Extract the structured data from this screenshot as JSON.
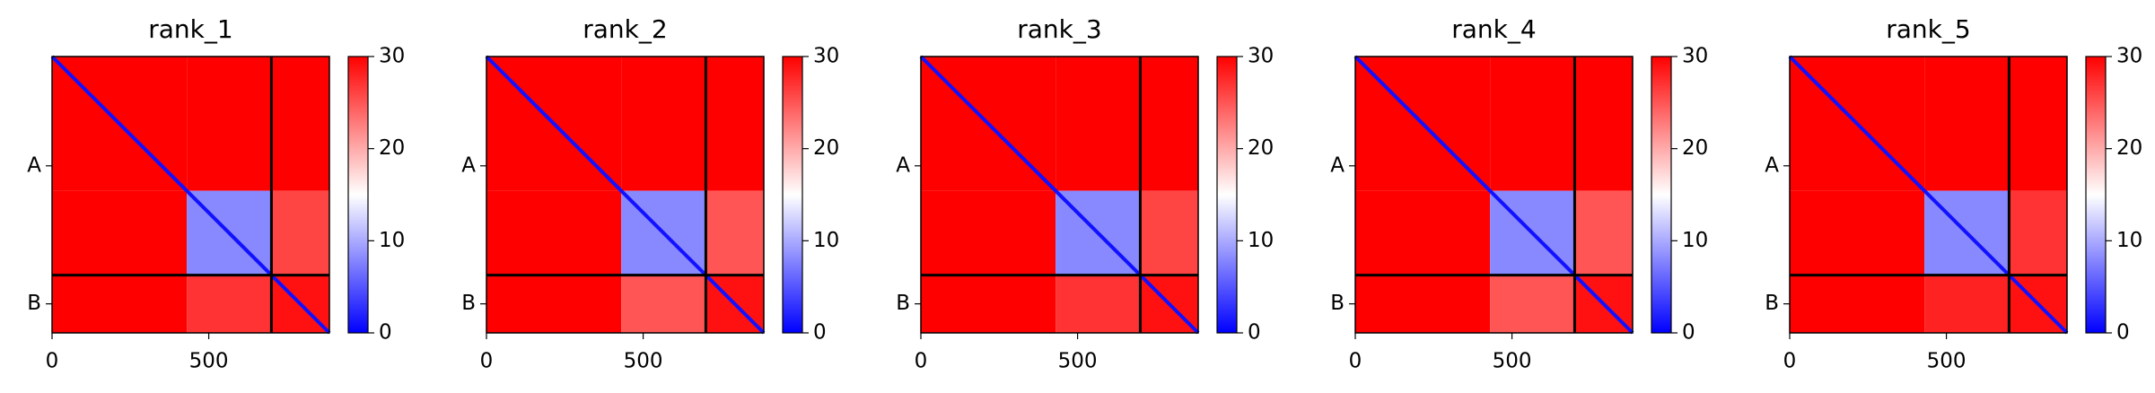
{
  "chart_data": [
    {
      "type": "heatmap",
      "title": "rank_1",
      "colormap": "bwr",
      "xlim": [
        0,
        885
      ],
      "xticks": [
        0,
        500
      ],
      "ylim": [
        0,
        885
      ],
      "yticks": [
        {
          "value": 350,
          "label": "A"
        },
        {
          "value": 792,
          "label": "B"
        }
      ],
      "chain_breaks": [
        700
      ],
      "block_edges": [
        0,
        430,
        700,
        885
      ],
      "block_values": [
        [
          30,
          30,
          30
        ],
        [
          30,
          8,
          26
        ],
        [
          30,
          27,
          29
        ]
      ],
      "diagonal_value": 1,
      "clim": [
        0,
        30
      ],
      "cticks": [
        0,
        10,
        20,
        30
      ]
    },
    {
      "type": "heatmap",
      "title": "rank_2",
      "colormap": "bwr",
      "xlim": [
        0,
        885
      ],
      "xticks": [
        0,
        500
      ],
      "ylim": [
        0,
        885
      ],
      "yticks": [
        {
          "value": 350,
          "label": "A"
        },
        {
          "value": 792,
          "label": "B"
        }
      ],
      "chain_breaks": [
        700
      ],
      "block_edges": [
        0,
        430,
        700,
        885
      ],
      "block_values": [
        [
          30,
          30,
          30
        ],
        [
          30,
          8,
          25
        ],
        [
          30,
          25,
          29
        ]
      ],
      "diagonal_value": 1,
      "clim": [
        0,
        30
      ],
      "cticks": [
        0,
        10,
        20,
        30
      ]
    },
    {
      "type": "heatmap",
      "title": "rank_3",
      "colormap": "bwr",
      "xlim": [
        0,
        885
      ],
      "xticks": [
        0,
        500
      ],
      "ylim": [
        0,
        885
      ],
      "yticks": [
        {
          "value": 350,
          "label": "A"
        },
        {
          "value": 792,
          "label": "B"
        }
      ],
      "chain_breaks": [
        700
      ],
      "block_edges": [
        0,
        430,
        700,
        885
      ],
      "block_values": [
        [
          30,
          30,
          30
        ],
        [
          30,
          8,
          26
        ],
        [
          30,
          27,
          29
        ]
      ],
      "diagonal_value": 1,
      "clim": [
        0,
        30
      ],
      "cticks": [
        0,
        10,
        20,
        30
      ]
    },
    {
      "type": "heatmap",
      "title": "rank_4",
      "colormap": "bwr",
      "xlim": [
        0,
        885
      ],
      "xticks": [
        0,
        500
      ],
      "ylim": [
        0,
        885
      ],
      "yticks": [
        {
          "value": 350,
          "label": "A"
        },
        {
          "value": 792,
          "label": "B"
        }
      ],
      "chain_breaks": [
        700
      ],
      "block_edges": [
        0,
        430,
        700,
        885
      ],
      "block_values": [
        [
          30,
          30,
          30
        ],
        [
          30,
          8,
          25
        ],
        [
          30,
          25,
          29
        ]
      ],
      "diagonal_value": 1,
      "clim": [
        0,
        30
      ],
      "cticks": [
        0,
        10,
        20,
        30
      ]
    },
    {
      "type": "heatmap",
      "title": "rank_5",
      "colormap": "bwr",
      "xlim": [
        0,
        885
      ],
      "xticks": [
        0,
        500
      ],
      "ylim": [
        0,
        885
      ],
      "yticks": [
        {
          "value": 350,
          "label": "A"
        },
        {
          "value": 792,
          "label": "B"
        }
      ],
      "chain_breaks": [
        700
      ],
      "block_edges": [
        0,
        430,
        700,
        885
      ],
      "block_values": [
        [
          30,
          30,
          30
        ],
        [
          30,
          8,
          27
        ],
        [
          30,
          28,
          29
        ]
      ],
      "diagonal_value": 1,
      "clim": [
        0,
        30
      ],
      "cticks": [
        0,
        10,
        20,
        30
      ]
    }
  ]
}
